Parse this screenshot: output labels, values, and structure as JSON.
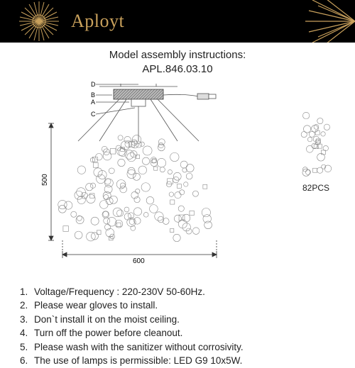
{
  "brand": "Aployt",
  "header": {
    "bg_color": "#000000",
    "accent_color": "#c9a15c"
  },
  "title_line1": "Model assembly instructions:",
  "title_line2": "APL.846.03.10",
  "diagram": {
    "width_label": "600",
    "height_label": "500",
    "markers": [
      "A",
      "B",
      "C",
      "D"
    ],
    "side_pieces_label": "82PCS",
    "crystal_count_approx": 140,
    "line_color": "#555555",
    "dim_color": "#333333"
  },
  "instructions": [
    "Voltage/Frequency : 220-230V 50-60Hz.",
    "Please wear gloves to install.",
    "Don`t install it on the moist ceiling.",
    "Turn off the power before cleanout.",
    "Please wash with the sanitizer without corrosivity.",
    "The use of lamps is permissible: LED G9 10x5W."
  ],
  "typography": {
    "title_fontsize": 15,
    "instruction_fontsize": 13.5,
    "brand_fontsize": 26
  }
}
